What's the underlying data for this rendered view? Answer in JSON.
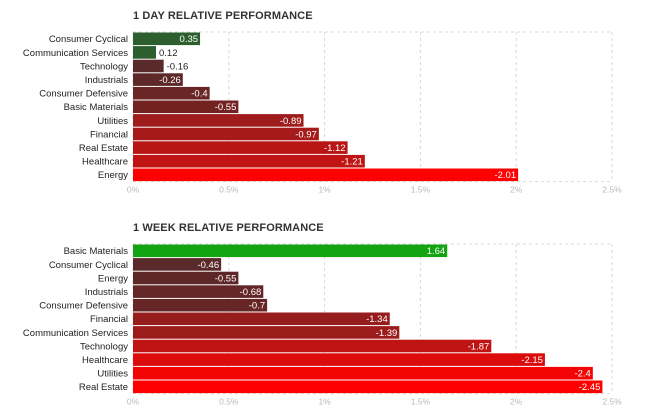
{
  "chart_data": [
    {
      "type": "bar",
      "orientation": "horizontal",
      "title": "1 DAY RELATIVE PERFORMANCE",
      "categories": [
        "Consumer Cyclical",
        "Communication Services",
        "Technology",
        "Industrials",
        "Consumer Defensive",
        "Basic Materials",
        "Utilities",
        "Financial",
        "Real Estate",
        "Healthcare",
        "Energy"
      ],
      "values": [
        0.35,
        0.12,
        -0.16,
        -0.26,
        -0.4,
        -0.55,
        -0.89,
        -0.97,
        -1.12,
        -1.21,
        -2.01
      ],
      "value_labels": [
        "0.35",
        "0.12",
        "-0.16",
        "-0.26",
        "-0.4",
        "-0.55",
        "-0.89",
        "-0.97",
        "-1.12",
        "-1.21",
        "-2.01"
      ],
      "bar_colors": [
        "#2c5f2d",
        "#2c5f2d",
        "#5a2a2a",
        "#5e2828",
        "#6a2525",
        "#732222",
        "#9e1c1c",
        "#a61a1a",
        "#b81515",
        "#c01313",
        "#ff0000"
      ],
      "xlim": [
        0,
        2.5
      ],
      "x_ticks": [
        "0%",
        "0.5%",
        "1%",
        "1.5%",
        "2%",
        "2.5%"
      ],
      "grid": true
    },
    {
      "type": "bar",
      "orientation": "horizontal",
      "title": "1 WEEK RELATIVE PERFORMANCE",
      "categories": [
        "Basic Materials",
        "Consumer Cyclical",
        "Energy",
        "Industrials",
        "Consumer Defensive",
        "Financial",
        "Communication Services",
        "Technology",
        "Healthcare",
        "Utilities",
        "Real Estate"
      ],
      "values": [
        1.64,
        -0.46,
        -0.55,
        -0.68,
        -0.7,
        -1.34,
        -1.39,
        -1.87,
        -2.15,
        -2.4,
        -2.45
      ],
      "value_labels": [
        "1.64",
        "-0.46",
        "-0.55",
        "-0.68",
        "-0.7",
        "-1.34",
        "-1.39",
        "-1.87",
        "-2.15",
        "-2.4",
        "-2.45"
      ],
      "bar_colors": [
        "#12a412",
        "#5a2a2a",
        "#5e2828",
        "#642626",
        "#662626",
        "#961d1d",
        "#9c1c1c",
        "#c01313",
        "#dc0c0c",
        "#f30505",
        "#ff0000"
      ],
      "xlim": [
        0,
        2.5
      ],
      "x_ticks": [
        "0%",
        "0.5%",
        "1%",
        "1.5%",
        "2%",
        "2.5%"
      ],
      "grid": true
    }
  ]
}
